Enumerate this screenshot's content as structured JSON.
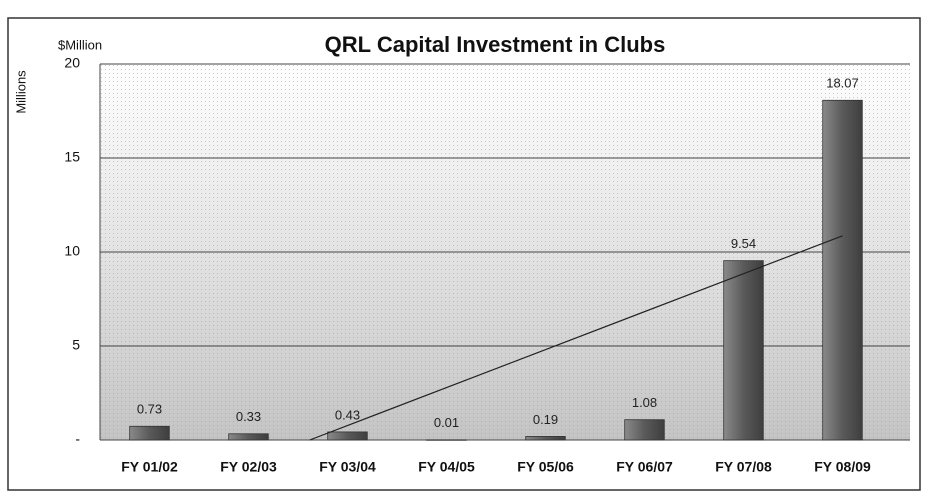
{
  "chart_data": {
    "type": "bar",
    "title": "QRL Capital Investment in Clubs",
    "unit_label": "$Million",
    "y_axis_label": "Millions",
    "categories": [
      "FY 01/02",
      "FY 02/03",
      "FY 03/04",
      "FY 04/05",
      "FY 05/06",
      "FY 06/07",
      "FY 07/08",
      "FY 08/09"
    ],
    "values": [
      0.73,
      0.33,
      0.43,
      0.01,
      0.19,
      1.08,
      9.54,
      18.07
    ],
    "color": "#6a6a6a",
    "ylim": [
      0,
      20
    ],
    "yticks": [
      {
        "value": 0,
        "label": "-"
      },
      5,
      10,
      15,
      20
    ],
    "grid": true,
    "trendline": true
  }
}
